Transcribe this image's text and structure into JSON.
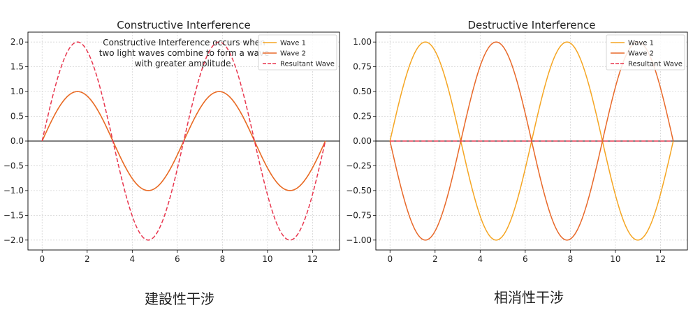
{
  "chart_data": [
    {
      "type": "line",
      "title": "Constructive Interference",
      "annotation": "Constructive Interference occurs when\ntwo light waves combine to form a wave\nwith greater amplitude.",
      "xlabel": "",
      "ylabel": "",
      "xlim": [
        -0.628,
        13.195
      ],
      "ylim": [
        -2.2,
        2.2
      ],
      "xticks": [
        0,
        2,
        4,
        6,
        8,
        10,
        12
      ],
      "xtick_labels": [
        "0",
        "2",
        "4",
        "6",
        "8",
        "10",
        "12"
      ],
      "yticks": [
        2.0,
        1.5,
        1.0,
        0.5,
        0.0,
        -0.5,
        -1.0,
        -1.5,
        -2.0
      ],
      "ytick_labels": [
        "2.0",
        "1.5",
        "1.0",
        "0.5",
        "0.0",
        "−0.5",
        "−1.0",
        "−1.5",
        "−2.0"
      ],
      "grid": true,
      "legend_position": "top-right",
      "x_range": [
        0,
        12.566
      ],
      "series": [
        {
          "name": "Wave 1",
          "function": "sin(x)",
          "color": "#f5a623",
          "dash": "solid"
        },
        {
          "name": "Wave 2",
          "function": "sin(x)",
          "color": "#e8692a",
          "dash": "solid"
        },
        {
          "name": "Resultant Wave",
          "function": "2*sin(x)",
          "color": "#e8374f",
          "dash": "dashed"
        }
      ]
    },
    {
      "type": "line",
      "title": "Destructive Interference",
      "xlabel": "",
      "ylabel": "",
      "xlim": [
        -0.628,
        13.195
      ],
      "ylim": [
        -1.1,
        1.1
      ],
      "xticks": [
        0,
        2,
        4,
        6,
        8,
        10,
        12
      ],
      "xtick_labels": [
        "0",
        "2",
        "4",
        "6",
        "8",
        "10",
        "12"
      ],
      "yticks": [
        1.0,
        0.75,
        0.5,
        0.25,
        0.0,
        -0.25,
        -0.5,
        -0.75,
        -1.0
      ],
      "ytick_labels": [
        "1.00",
        "0.75",
        "0.50",
        "0.25",
        "0.00",
        "−0.25",
        "−0.50",
        "−0.75",
        "−1.00"
      ],
      "grid": true,
      "legend_position": "top-right",
      "x_range": [
        0,
        12.566
      ],
      "series": [
        {
          "name": "Wave 1",
          "function": "sin(x)",
          "color": "#f5a623",
          "dash": "solid"
        },
        {
          "name": "Wave 2",
          "function": "-sin(x)",
          "color": "#e8692a",
          "dash": "solid"
        },
        {
          "name": "Resultant Wave",
          "function": "0",
          "color": "#e8374f",
          "dash": "dashed"
        }
      ]
    }
  ],
  "captions": {
    "left": "建設性干涉",
    "right": "相消性干涉"
  }
}
